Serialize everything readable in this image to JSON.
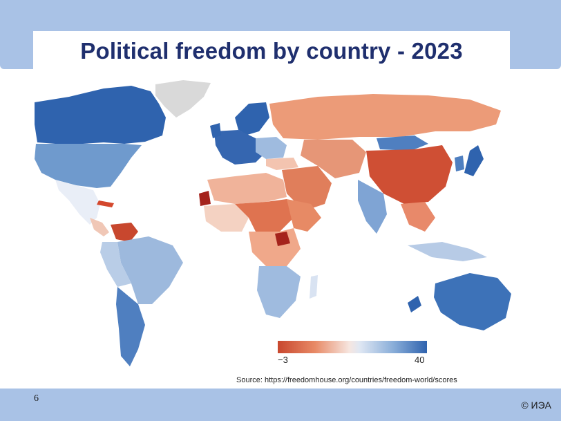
{
  "slide": {
    "title": "Political freedom by country - 2023",
    "page_number": "6",
    "copyright": "© ИЭА",
    "source": "Source: https://freedomhouse.org/countries/freedom-world/scores"
  },
  "legend": {
    "min_label": "−3",
    "max_label": "40",
    "color_low": "#c8472e",
    "color_mid": "#f2ede9",
    "color_high": "#2f63ae"
  },
  "colors": {
    "band": "#a9c2e6",
    "title": "#1f2f6e",
    "no_data": "#d9d9d9"
  }
}
